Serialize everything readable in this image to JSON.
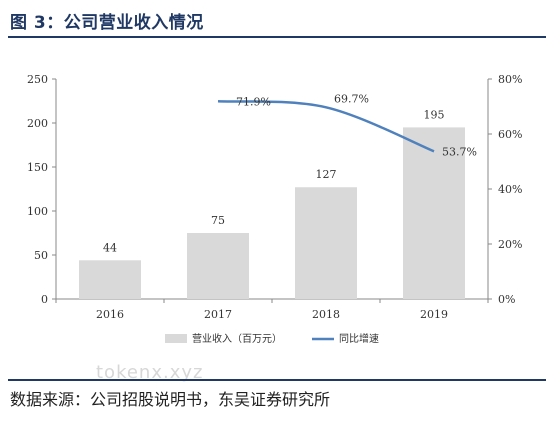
{
  "header": {
    "title": "图 3：公司营业收入情况"
  },
  "footer": {
    "source": "数据来源：公司招股说明书，东吴证券研究所"
  },
  "watermark": "tokenx.xyz",
  "chart_data": {
    "type": "bar+line",
    "categories": [
      "2016",
      "2017",
      "2018",
      "2019"
    ],
    "series": [
      {
        "name": "营业收入（百万元）",
        "type": "bar",
        "axis": "left",
        "values": [
          44,
          75,
          127,
          195
        ],
        "labels": [
          "44",
          "75",
          "127",
          "195"
        ],
        "color": "#d9d9d9"
      },
      {
        "name": "同比增速",
        "type": "line",
        "axis": "right",
        "x": [
          "2017",
          "2018",
          "2019"
        ],
        "values": [
          71.9,
          69.7,
          53.7
        ],
        "labels": [
          "71.9%",
          "69.7%",
          "53.7%"
        ],
        "color": "#4f81bd"
      }
    ],
    "y_left": {
      "ylim": [
        0,
        250
      ],
      "ticks": [
        "0",
        "50",
        "100",
        "150",
        "200",
        "250"
      ]
    },
    "y_right": {
      "ylim": [
        0,
        80
      ],
      "ticks": [
        "0%",
        "20%",
        "40%",
        "60%",
        "80%"
      ]
    },
    "legend": "bottom",
    "grid": false
  }
}
